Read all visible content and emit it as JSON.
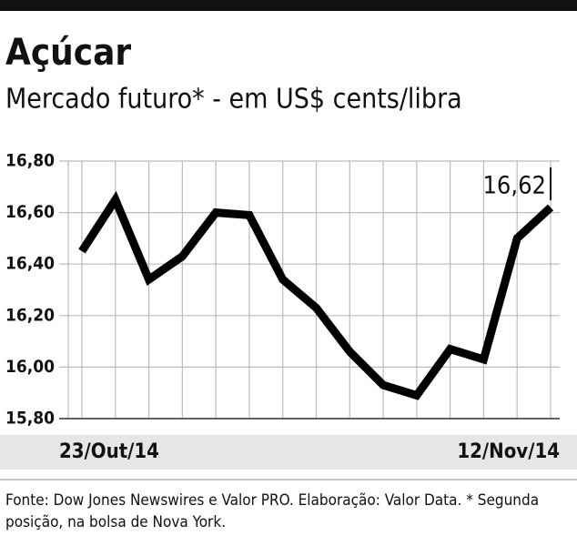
{
  "chart_data": {
    "type": "line",
    "title": "Açúcar",
    "subtitle": "Mercado futuro* - em US$ cents/libra",
    "categories": [
      "23/Out/14",
      null,
      null,
      null,
      null,
      null,
      null,
      null,
      null,
      null,
      null,
      null,
      null,
      null,
      "12/Nov/14"
    ],
    "values": [
      16.45,
      16.65,
      16.34,
      16.43,
      16.6,
      16.59,
      16.34,
      16.23,
      16.06,
      15.93,
      15.89,
      16.07,
      16.03,
      16.5,
      16.62
    ],
    "value_labels": [
      null,
      null,
      null,
      null,
      null,
      null,
      null,
      null,
      null,
      null,
      null,
      null,
      null,
      null,
      "16,62"
    ],
    "color": "#000000",
    "ylim": [
      15.8,
      16.8
    ],
    "yticks": [
      {
        "value": 15.8,
        "label": "15,80"
      },
      {
        "value": 16.0,
        "label": "16,00"
      },
      {
        "value": 16.2,
        "label": "16,20"
      },
      {
        "value": 16.4,
        "label": "16,40"
      },
      {
        "value": 16.6,
        "label": "16,60"
      },
      {
        "value": 16.8,
        "label": "16,80"
      }
    ],
    "grid": true,
    "source": "Fonte: Dow Jones Newswires e Valor PRO. Elaboração: Valor Data. * Segunda posição, na bolsa de Nova York."
  }
}
